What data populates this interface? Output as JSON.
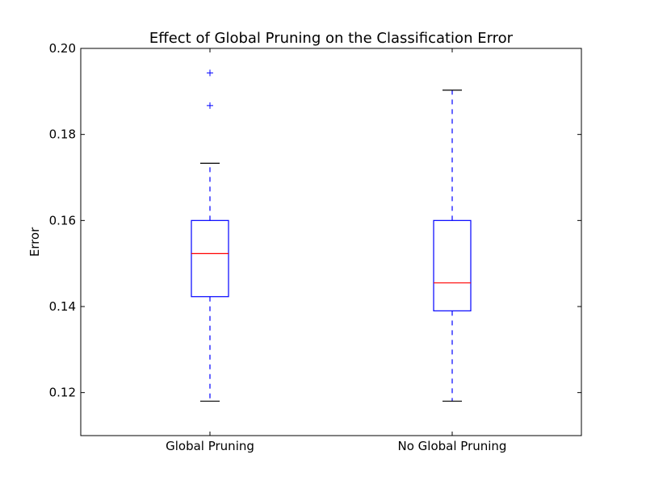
{
  "chart_data": {
    "type": "box",
    "title": "Effect of Global Pruning on the Classification Error",
    "xlabel": "",
    "ylabel": "Error",
    "ylim": [
      0.11,
      0.2
    ],
    "yticks": [
      0.12,
      0.14,
      0.16,
      0.18,
      0.2
    ],
    "ytick_labels": [
      "0.12",
      "0.14",
      "0.16",
      "0.18",
      "0.20"
    ],
    "grid": false,
    "categories": [
      "Global Pruning",
      "No Global Pruning"
    ],
    "boxes": [
      {
        "name": "Global Pruning",
        "whisker_low": 0.118,
        "q1": 0.1423,
        "median": 0.1523,
        "q3": 0.16,
        "whisker_high": 0.1733,
        "outliers": [
          0.1867,
          0.1943
        ]
      },
      {
        "name": "No Global Pruning",
        "whisker_low": 0.118,
        "q1": 0.139,
        "median": 0.1455,
        "q3": 0.16,
        "whisker_high": 0.1903,
        "outliers": []
      }
    ],
    "colors": {
      "box": "#0000ff",
      "median": "#ff0000",
      "whisker": "#0000ff",
      "cap": "#000000",
      "outlier": "#0000ff",
      "axes": "#000000"
    }
  }
}
